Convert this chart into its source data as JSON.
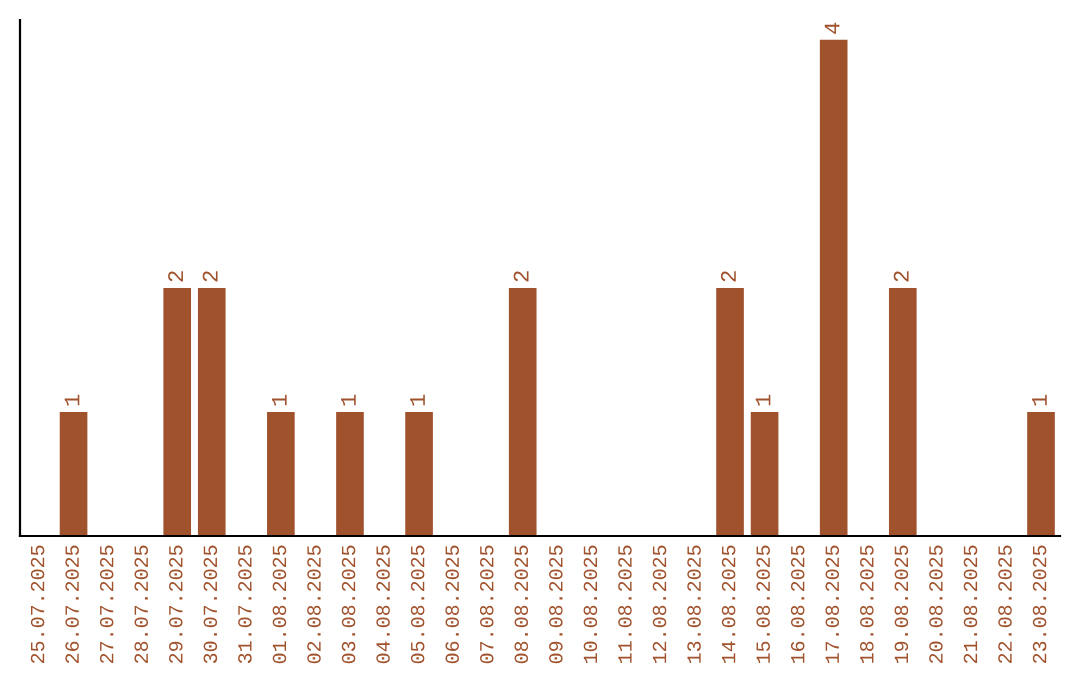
{
  "chart_data": {
    "type": "bar",
    "categories": [
      "25.07.2025",
      "26.07.2025",
      "27.07.2025",
      "28.07.2025",
      "29.07.2025",
      "30.07.2025",
      "31.07.2025",
      "01.08.2025",
      "02.08.2025",
      "03.08.2025",
      "04.08.2025",
      "05.08.2025",
      "06.08.2025",
      "07.08.2025",
      "08.08.2025",
      "09.08.2025",
      "10.08.2025",
      "11.08.2025",
      "12.08.2025",
      "13.08.2025",
      "14.08.2025",
      "15.08.2025",
      "16.08.2025",
      "17.08.2025",
      "18.08.2025",
      "19.08.2025",
      "20.08.2025",
      "21.08.2025",
      "22.08.2025",
      "23.08.2025"
    ],
    "values": [
      0,
      1,
      0,
      0,
      2,
      2,
      0,
      1,
      0,
      1,
      0,
      1,
      0,
      0,
      2,
      0,
      0,
      0,
      0,
      0,
      2,
      1,
      0,
      4,
      0,
      2,
      0,
      0,
      0,
      1
    ],
    "value_labels": [
      null,
      "1",
      null,
      null,
      "2",
      "2",
      null,
      "1",
      null,
      "1",
      null,
      "1",
      null,
      null,
      "2",
      null,
      null,
      null,
      null,
      null,
      "2",
      "1",
      null,
      "4",
      null,
      "2",
      null,
      null,
      null,
      "1"
    ],
    "color": "#a0522d",
    "ylim": [
      0,
      4.16
    ],
    "tick_labels": "x",
    "grid": false,
    "legend": false
  }
}
